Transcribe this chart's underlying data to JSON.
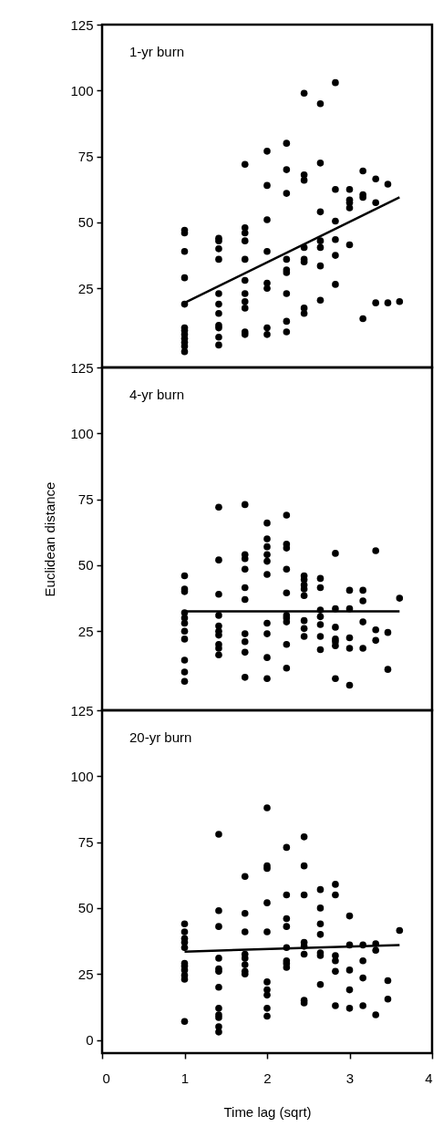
{
  "chart_data": [
    {
      "type": "scatter",
      "title": "1-yr burn",
      "tick_labels": "y",
      "xlim": [
        0,
        4
      ],
      "xticks": [
        0,
        1,
        2,
        3,
        4
      ],
      "ylim": [
        -5,
        125
      ],
      "yticks": [
        25,
        50,
        75,
        100,
        125
      ],
      "series": [
        {
          "marker": "circle",
          "color": "#000000",
          "x": [
            1,
            1,
            1,
            1,
            1,
            1,
            1,
            1,
            1,
            1,
            1,
            1,
            1.414,
            1.414,
            1.414,
            1.414,
            1.414,
            1.414,
            1.414,
            1.414,
            1.414,
            1.414,
            1.414,
            1.732,
            1.732,
            1.732,
            1.732,
            1.732,
            1.732,
            1.732,
            1.732,
            1.732,
            1.732,
            1.732,
            2,
            2,
            2,
            2,
            2,
            2,
            2,
            2,
            2.236,
            2.236,
            2.236,
            2.236,
            2.236,
            2.236,
            2.236,
            2.236,
            2.236,
            2.449,
            2.449,
            2.449,
            2.449,
            2.449,
            2.449,
            2.449,
            2.449,
            2.646,
            2.646,
            2.646,
            2.646,
            2.646,
            2.646,
            2.646,
            2.828,
            2.828,
            2.828,
            2.828,
            2.828,
            2.828,
            3,
            3,
            3,
            3,
            3,
            3.162,
            3.162,
            3.162,
            3.162,
            3.317,
            3.317,
            3.317,
            3.464,
            3.464,
            3.606
          ],
          "values": [
            47,
            46,
            39,
            29,
            19,
            10,
            9,
            7.5,
            6,
            4.5,
            3,
            1,
            44,
            43,
            40,
            36,
            23,
            19,
            15.5,
            11,
            10,
            6.5,
            3.5,
            72,
            48,
            46,
            43,
            36,
            28,
            23,
            20,
            17.5,
            8.5,
            7.5,
            77,
            64,
            51,
            39,
            27,
            25,
            10,
            7.5,
            80,
            70,
            61,
            36,
            32,
            31,
            23,
            12.5,
            8.5,
            99,
            68,
            66,
            40.5,
            36,
            35,
            17.5,
            15.5,
            95,
            72.5,
            54,
            43,
            40.5,
            33.5,
            20.5,
            103,
            62.5,
            50.5,
            43.5,
            37.5,
            26.5,
            62.5,
            58.5,
            57.5,
            55.5,
            41.5,
            69.5,
            60.5,
            59.5,
            13.5,
            66.5,
            57.5,
            19.5,
            64.5,
            19.5,
            20
          ]
        },
        {
          "type": "line",
          "color": "#000000",
          "x": [
            1,
            3.606
          ],
          "values": [
            19.5,
            59.5
          ]
        }
      ]
    },
    {
      "type": "scatter",
      "title": "4-yr burn",
      "ylabel": "Euclidean distance",
      "tick_labels": "y",
      "xlim": [
        0,
        4
      ],
      "xticks": [
        0,
        1,
        2,
        3,
        4
      ],
      "ylim": [
        -5,
        125
      ],
      "yticks": [
        25,
        50,
        75,
        100,
        125
      ],
      "series": [
        {
          "marker": "circle",
          "color": "#000000",
          "x": [
            1,
            1,
            1,
            1,
            1,
            1,
            1,
            1,
            1,
            1,
            1,
            1.414,
            1.414,
            1.414,
            1.414,
            1.414,
            1.414,
            1.414,
            1.414,
            1.414,
            1.414,
            1.732,
            1.732,
            1.732,
            1.732,
            1.732,
            1.732,
            1.732,
            1.732,
            1.732,
            1.732,
            2,
            2,
            2,
            2,
            2,
            2,
            2,
            2,
            2,
            2,
            2.236,
            2.236,
            2.236,
            2.236,
            2.236,
            2.236,
            2.236,
            2.236,
            2.236,
            2.236,
            2.449,
            2.449,
            2.449,
            2.449,
            2.449,
            2.449,
            2.449,
            2.449,
            2.646,
            2.646,
            2.646,
            2.646,
            2.646,
            2.646,
            2.646,
            2.828,
            2.828,
            2.828,
            2.828,
            2.828,
            2.828,
            2.828,
            3,
            3,
            3,
            3,
            3,
            3.162,
            3.162,
            3.162,
            3.162,
            3.317,
            3.317,
            3.317,
            3.464,
            3.464,
            3.606
          ],
          "values": [
            46,
            41,
            40,
            32,
            30,
            28,
            25,
            22,
            14,
            9.5,
            6,
            72,
            52,
            39,
            31,
            27,
            25,
            23.5,
            20,
            18.5,
            16,
            73,
            54,
            52.5,
            48.5,
            41.5,
            37,
            24,
            21,
            17,
            7.5,
            66,
            60,
            57,
            54,
            51.5,
            46.5,
            28,
            24,
            15,
            7,
            69,
            58,
            56.5,
            48.5,
            39.5,
            31,
            30,
            28.5,
            20,
            11,
            46,
            44.5,
            42.5,
            41,
            38.5,
            29,
            26,
            23,
            45,
            41.5,
            33,
            30.5,
            27.5,
            23,
            18,
            54.5,
            33.5,
            26.5,
            22,
            21,
            19.5,
            7,
            40.5,
            33.5,
            22.5,
            18.5,
            4.5,
            40.5,
            36.5,
            28.5,
            18.5,
            55.5,
            25.5,
            21.5,
            24.5,
            10.5,
            37.5
          ]
        },
        {
          "type": "line",
          "color": "#000000",
          "x": [
            1,
            3.606
          ],
          "values": [
            32.5,
            32.5
          ]
        }
      ]
    },
    {
      "type": "scatter",
      "title": "20-yr burn",
      "xlabel": "Time lag (sqrt)",
      "xlim": [
        0,
        4
      ],
      "xticks": [
        0,
        1,
        2,
        3,
        4
      ],
      "ylim": [
        -5,
        125
      ],
      "yticks": [
        0,
        25,
        50,
        75,
        100,
        125
      ],
      "series": [
        {
          "marker": "circle",
          "color": "#000000",
          "x": [
            1,
            1,
            1,
            1,
            1,
            1,
            1,
            1,
            1,
            1,
            1,
            1.414,
            1.414,
            1.414,
            1.414,
            1.414,
            1.414,
            1.414,
            1.414,
            1.414,
            1.414,
            1.414,
            1.414,
            1.732,
            1.732,
            1.732,
            1.732,
            1.732,
            1.732,
            1.732,
            1.732,
            2,
            2,
            2,
            2,
            2,
            2,
            2,
            2,
            2,
            2,
            2.236,
            2.236,
            2.236,
            2.236,
            2.236,
            2.236,
            2.236,
            2.236,
            2.449,
            2.449,
            2.449,
            2.449,
            2.449,
            2.449,
            2.449,
            2.449,
            2.646,
            2.646,
            2.646,
            2.646,
            2.646,
            2.646,
            2.646,
            2.828,
            2.828,
            2.828,
            2.828,
            2.828,
            2.828,
            3,
            3,
            3,
            3,
            3,
            3.162,
            3.162,
            3.162,
            3.162,
            3.317,
            3.317,
            3.317,
            3.464,
            3.464,
            3.606
          ],
          "values": [
            44,
            41,
            38.5,
            37,
            35,
            29,
            28,
            26.5,
            24.5,
            23,
            7,
            78,
            49,
            43,
            31,
            27,
            26,
            20,
            12,
            9.5,
            8.5,
            5,
            3,
            62,
            48,
            41,
            32.5,
            31,
            28.5,
            26,
            25,
            88,
            66,
            65,
            52,
            41,
            22,
            19,
            17,
            12,
            9,
            73,
            55,
            46,
            43,
            35,
            30,
            29,
            27.5,
            77,
            66,
            55,
            37,
            35.5,
            32.5,
            15,
            14,
            57,
            50,
            44,
            40,
            33,
            32,
            21,
            59,
            55,
            32,
            30,
            26,
            13,
            47,
            36,
            26.5,
            19,
            12,
            36,
            30,
            23.5,
            13,
            36.5,
            34,
            9.5,
            22.5,
            15.5,
            41.5
          ]
        },
        {
          "type": "line",
          "color": "#000000",
          "x": [
            1,
            3.606
          ],
          "values": [
            33.5,
            36
          ]
        }
      ]
    }
  ]
}
